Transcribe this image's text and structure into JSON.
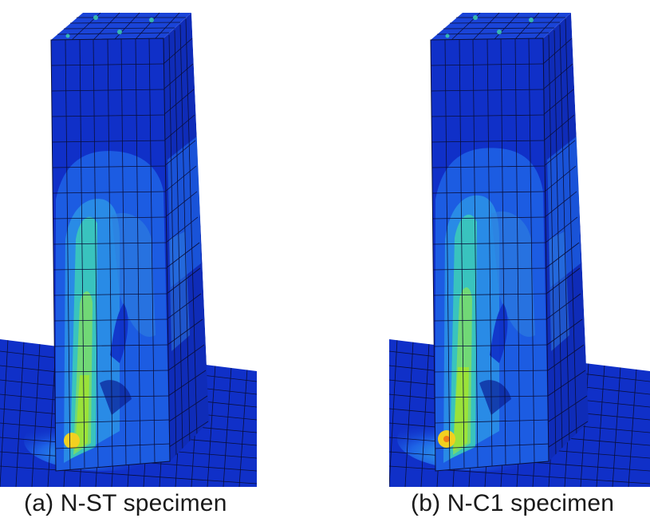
{
  "figure": {
    "panels": [
      {
        "id": "a",
        "caption": "(a) N-ST specimen"
      },
      {
        "id": "b",
        "caption": "(b) N-C1 specimen"
      }
    ]
  },
  "colors": {
    "background": "#ffffff",
    "low_stress": "#1030c8",
    "low_stress_dark": "#0a1f95",
    "mid_low": "#1e64e6",
    "mid": "#2fa0e8",
    "mid_high": "#3fd6b0",
    "high": "#9ae23a",
    "peak": "#f2d020",
    "mesh_line": "#0a0f3a"
  }
}
